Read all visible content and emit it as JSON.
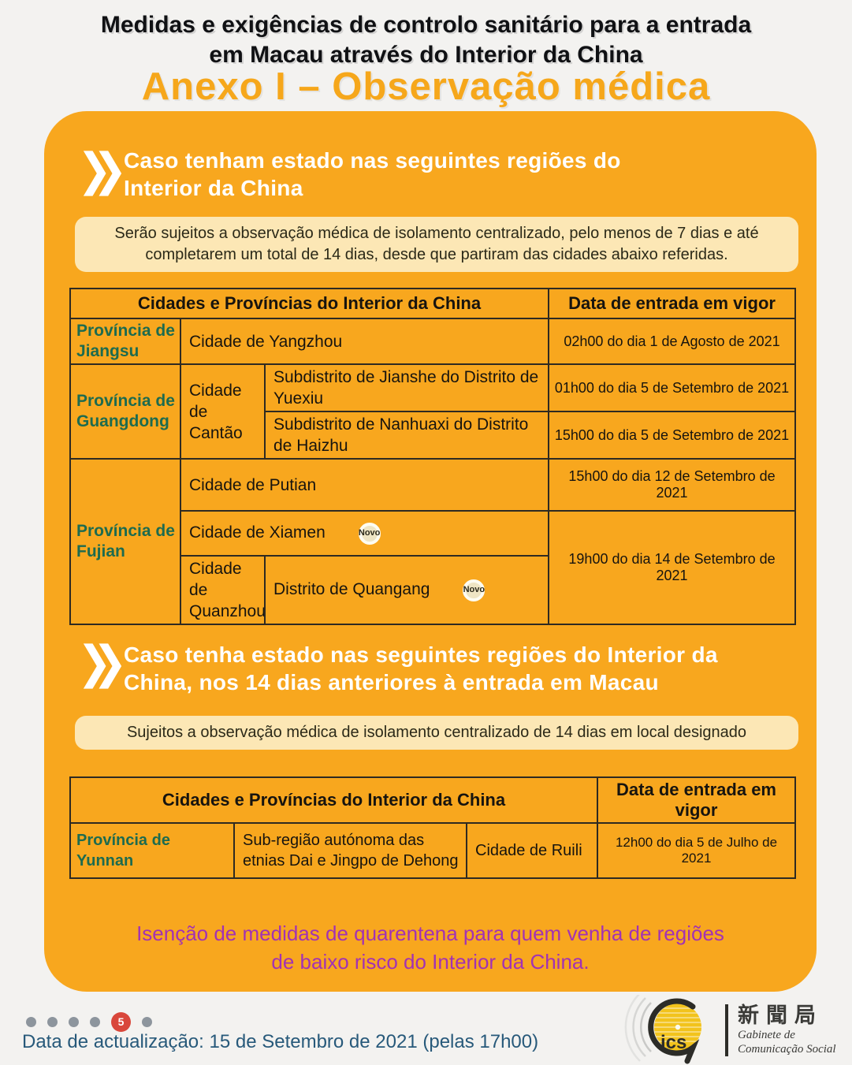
{
  "header": {
    "title_line1": "Medidas e exigências de controlo sanitário para a entrada",
    "title_line2": "em Macau através do Interior da China",
    "annex_title": "Anexo I – Observação médica"
  },
  "section1": {
    "heading_line1": "Caso tenham estado nas seguintes regiões do",
    "heading_line2": "Interior da China",
    "note_line1": "Serão sujeitos a observação médica de isolamento centralizado, pelo menos de 7 dias e até",
    "note_line2": "completarem um total de 14 dias, desde que partiram das cidades abaixo referidas.",
    "table": {
      "header_cities": "Cidades e Províncias do Interior da China",
      "header_date": "Data de entrada em vigor",
      "jiangsu_province": "Província de Jiangsu",
      "jiangsu_city": "Cidade de Yangzhou",
      "jiangsu_date": "02h00 do dia 1 de Agosto de 2021",
      "guangdong_province": "Província de Guangdong",
      "guangdong_city": "Cidade de Cantão",
      "guangdong_district1": "Subdistrito de Jianshe do Distrito de Yuexiu",
      "guangdong_date1": "01h00 do dia 5 de Setembro de 2021",
      "guangdong_district2": "Subdistrito de Nanhuaxi do Distrito de Haizhu",
      "guangdong_date2": "15h00 do dia 5 de Setembro de 2021",
      "fujian_province": "Província de Fujian",
      "fujian_city1": "Cidade de Putian",
      "fujian_date1": "15h00 do dia 12 de Setembro de 2021",
      "fujian_city2": "Cidade de Xiamen",
      "fujian_city2_badge": "Novo",
      "fujian_city3": "Cidade de Quanzhou",
      "fujian_district3": "Distrito de Quangang",
      "fujian_district3_badge": "Novo",
      "fujian_date23": "19h00 do dia 14 de Setembro de 2021"
    }
  },
  "section2": {
    "heading_line1": "Caso tenha estado nas seguintes regiões do Interior da",
    "heading_line2": "China, nos 14 dias anteriores à entrada em Macau",
    "note": "Sujeitos a observação médica de isolamento centralizado de 14 dias em local designado",
    "table": {
      "header_cities": "Cidades e Províncias do Interior da China",
      "header_date": "Data de entrada em vigor",
      "yunnan_province": "Província de Yunnan",
      "yunnan_region": "Sub-região autónoma das etnias Dai e Jingpo de Dehong",
      "yunnan_city": "Cidade de Ruili",
      "yunnan_date": "12h00 do dia 5 de Julho de 2021"
    }
  },
  "exemption": {
    "line1": "Isenção de medidas de quarentena para quem venha de regiões",
    "line2": "de baixo risco do Interior da China."
  },
  "footer": {
    "update_text": "Data de actualização: 15 de Setembro de 2021 (pelas 17h00)",
    "page_indicator": {
      "total_dots": 6,
      "active_index": 5,
      "active_label": "5"
    },
    "logo": {
      "acronym": "ics",
      "chinese": "新聞局",
      "dept_line1": "Gabinete de",
      "dept_line2": "Comunicação Social"
    }
  },
  "colors": {
    "card_orange": "#f8a71e",
    "annex_orange": "#f6a71b",
    "note_cream": "#fce7b5",
    "province_green": "#1d6b4f",
    "exemption_purple": "#a232b4",
    "footer_blue": "#27597a",
    "active_dot_red": "#d9473b"
  }
}
